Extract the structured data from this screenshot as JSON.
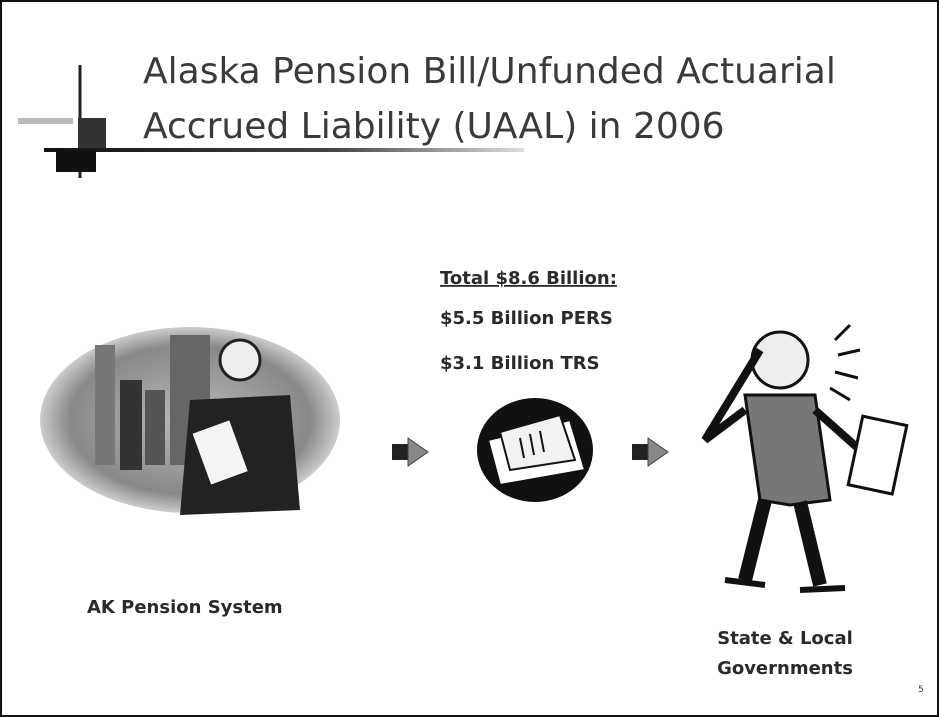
{
  "slide": {
    "title": {
      "lines": [
        "Alaska Pension Bill/Unfunded Actuarial",
        "Accrued Liability (UAAL) in 2006"
      ]
    },
    "total": "Total $8.6 Billion:",
    "breakdown": [
      "$5.5 Billion PERS",
      "$3.1 Billion TRS"
    ],
    "source_label": "AK Pension System",
    "target_label": [
      "State & Local",
      "Governments"
    ],
    "page_number": "5"
  }
}
